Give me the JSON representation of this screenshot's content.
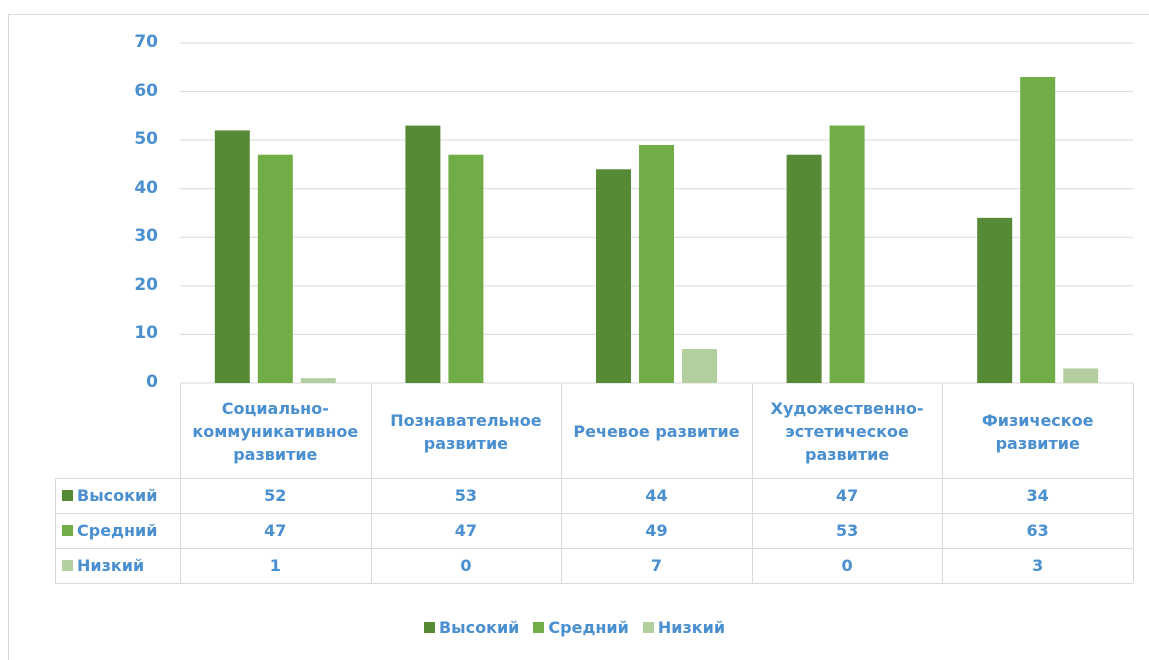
{
  "chart_data": {
    "type": "bar",
    "categories": [
      "Социально-коммуникативное развитие",
      "Познавательное развитие",
      "Речевое развитие",
      "Художественно-эстетическое развитие",
      "Физическое развитие"
    ],
    "series": [
      {
        "name": "Высокий",
        "color": "#578a36",
        "values": [
          52,
          53,
          44,
          47,
          34
        ]
      },
      {
        "name": "Средний",
        "color": "#70ad47",
        "values": [
          47,
          47,
          49,
          53,
          63
        ]
      },
      {
        "name": "Низкий",
        "color": "#b3cfa0",
        "values": [
          1,
          0,
          7,
          0,
          3
        ]
      }
    ],
    "ylim": [
      0,
      70
    ],
    "yticks": [
      0,
      10,
      20,
      30,
      40,
      50,
      60,
      70
    ],
    "grid": true,
    "data_table": true,
    "legend": "bottom"
  }
}
